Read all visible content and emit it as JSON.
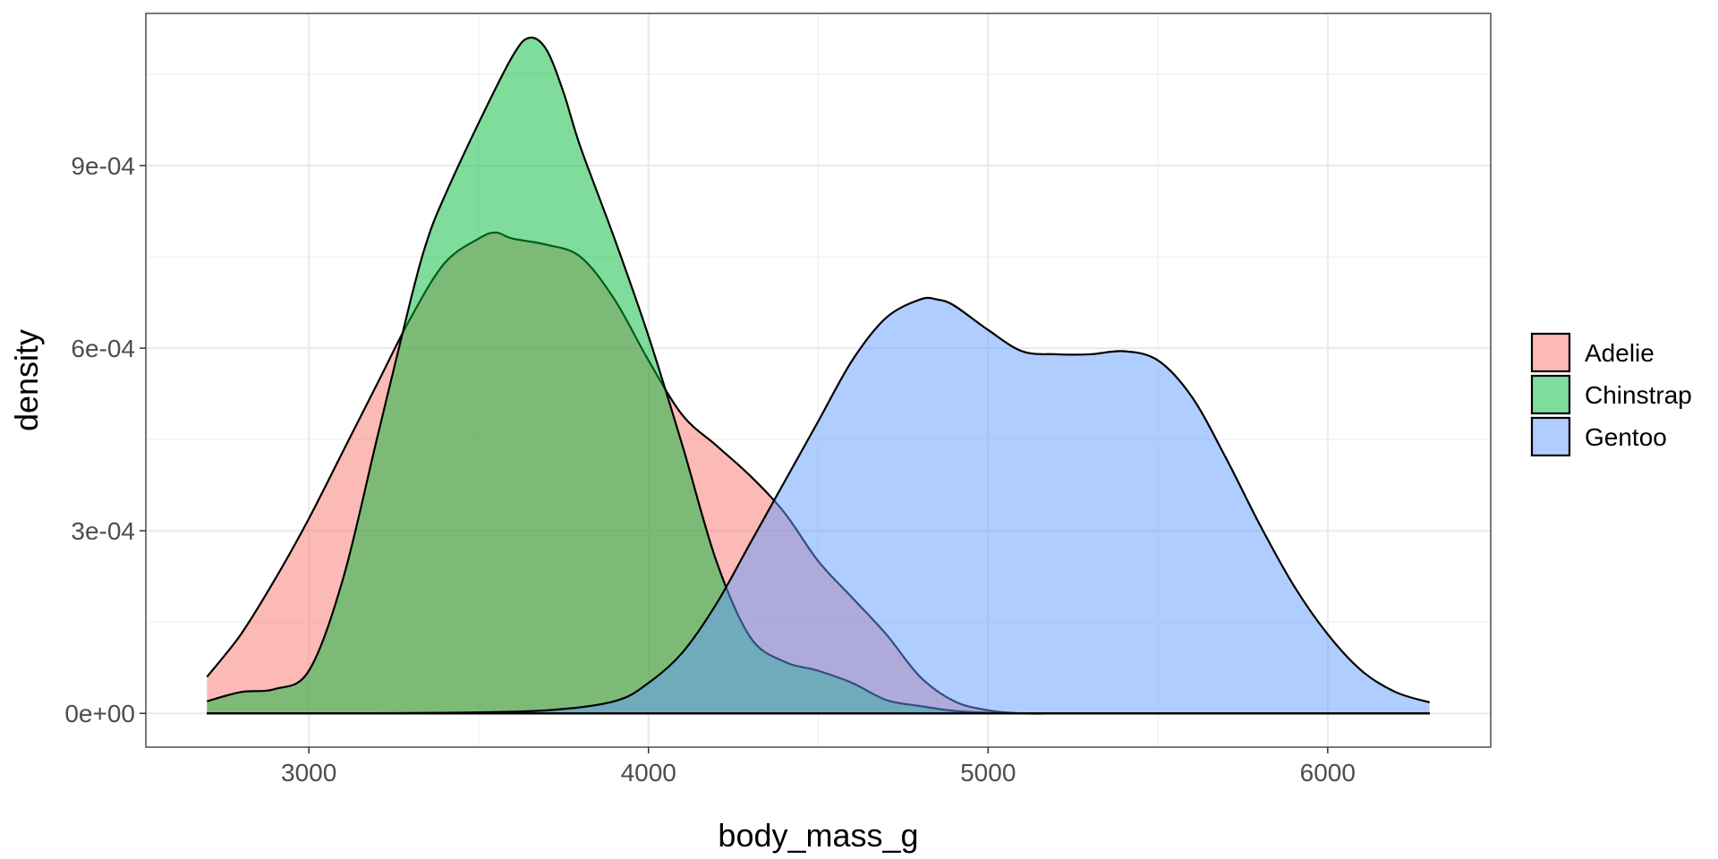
{
  "chart_data": {
    "type": "area",
    "chart_subtype": "density",
    "title": "",
    "xlabel": "body_mass_g",
    "ylabel": "density",
    "xlim": [
      2520,
      6480
    ],
    "ylim": [
      -5.55e-05,
      0.00115
    ],
    "x_ticks": [
      3000,
      4000,
      5000,
      6000
    ],
    "x_tick_labels": [
      "3000",
      "4000",
      "5000",
      "6000"
    ],
    "y_ticks": [
      0,
      0.0003,
      0.0006,
      0.0009
    ],
    "y_tick_labels": [
      "0e+00",
      "3e-04",
      "6e-04",
      "9e-04"
    ],
    "grid": true,
    "legend_position": "right",
    "series": [
      {
        "name": "Adelie",
        "color": "#F8766D",
        "x": [
          2700,
          2800,
          2900,
          3000,
          3100,
          3200,
          3300,
          3400,
          3500,
          3550,
          3600,
          3700,
          3800,
          3900,
          4000,
          4100,
          4200,
          4300,
          4400,
          4500,
          4600,
          4700,
          4800,
          4900,
          5000,
          5100,
          5200,
          5300,
          5400,
          5500,
          5600,
          5800,
          6000,
          6300
        ],
        "y": [
          6e-05,
          0.00013,
          0.00022,
          0.00032,
          0.00043,
          0.00054,
          0.00065,
          0.00074,
          0.00078,
          0.00079,
          0.00078,
          0.00077,
          0.00075,
          0.00068,
          0.00058,
          0.00049,
          0.00044,
          0.00039,
          0.00033,
          0.00025,
          0.00019,
          0.00013,
          6e-05,
          2e-05,
          5e-06,
          0,
          0,
          0,
          0,
          0,
          0,
          0,
          0,
          0
        ]
      },
      {
        "name": "Chinstrap",
        "color": "#00BA38",
        "x": [
          2700,
          2800,
          2900,
          3000,
          3100,
          3200,
          3300,
          3350,
          3400,
          3500,
          3600,
          3650,
          3700,
          3750,
          3800,
          3900,
          4000,
          4100,
          4200,
          4300,
          4400,
          4500,
          4600,
          4700,
          4800,
          4900,
          5000,
          5100,
          5200,
          5300,
          5400,
          5500,
          5600,
          5800,
          6000,
          6300
        ],
        "y": [
          2e-05,
          3.5e-05,
          4e-05,
          7e-05,
          0.00022,
          0.00045,
          0.00068,
          0.00078,
          0.00085,
          0.00097,
          0.00108,
          0.00111,
          0.00109,
          0.00102,
          0.00093,
          0.00078,
          0.00062,
          0.00044,
          0.00025,
          0.000125,
          8.5e-05,
          7e-05,
          5e-05,
          2.2e-05,
          1.2e-05,
          4e-06,
          1e-06,
          0,
          0,
          0,
          0,
          0,
          0,
          0,
          0,
          0
        ]
      },
      {
        "name": "Gentoo",
        "color": "#619CFF",
        "x": [
          2700,
          3000,
          3400,
          3700,
          3900,
          4000,
          4100,
          4200,
          4300,
          4400,
          4500,
          4600,
          4700,
          4800,
          4850,
          4900,
          5000,
          5100,
          5200,
          5300,
          5400,
          5500,
          5600,
          5700,
          5800,
          5900,
          6000,
          6100,
          6200,
          6300
        ],
        "y": [
          0,
          0,
          1e-06,
          5e-06,
          2e-05,
          5e-05,
          0.0001,
          0.00018,
          0.00028,
          0.00038,
          0.00048,
          0.00058,
          0.00065,
          0.00068,
          0.00068,
          0.00067,
          0.00063,
          0.000595,
          0.00059,
          0.00059,
          0.000595,
          0.00058,
          0.00052,
          0.00042,
          0.00031,
          0.00021,
          0.00013,
          7e-05,
          3.5e-05,
          1.8e-05
        ]
      }
    ]
  }
}
